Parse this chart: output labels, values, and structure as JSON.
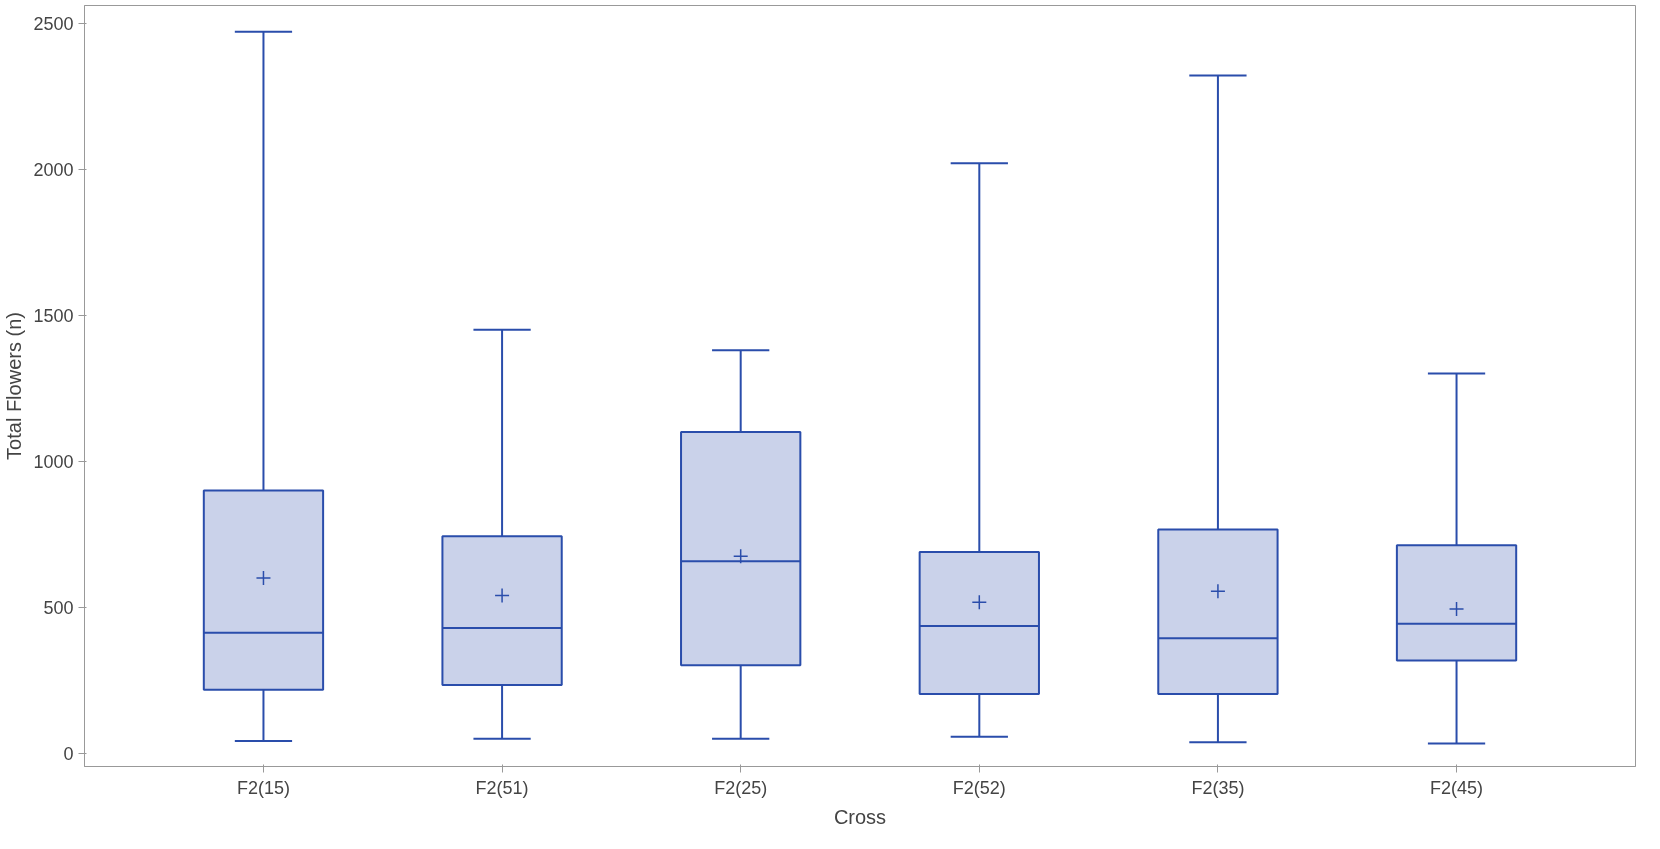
{
  "chart_data": {
    "type": "box",
    "xlabel": "Cross",
    "ylabel": "Total Flowers (n)",
    "categories": [
      "F2(15)",
      "F2(51)",
      "F2(25)",
      "F2(52)",
      "F2(35)",
      "F2(45)"
    ],
    "color": "#2a4dab",
    "marker": "cross",
    "grid": false,
    "ylim": [
      -45,
      2560
    ],
    "yticks": [
      0,
      500,
      1000,
      1500,
      2000,
      2500
    ],
    "boxes": [
      {
        "low": 42,
        "q1": 218,
        "median": 413,
        "q3": 900,
        "high": 2470,
        "mean": 600
      },
      {
        "low": 50,
        "q1": 234,
        "median": 429,
        "q3": 743,
        "high": 1450,
        "mean": 540
      },
      {
        "low": 50,
        "q1": 302,
        "median": 658,
        "q3": 1100,
        "high": 1380,
        "mean": 675
      },
      {
        "low": 57,
        "q1": 203,
        "median": 436,
        "q3": 689,
        "high": 2020,
        "mean": 517
      },
      {
        "low": 38,
        "q1": 203,
        "median": 394,
        "q3": 766,
        "high": 2320,
        "mean": 555
      },
      {
        "low": 34,
        "q1": 318,
        "median": 444,
        "q3": 712,
        "high": 1300,
        "mean": 494
      }
    ]
  }
}
